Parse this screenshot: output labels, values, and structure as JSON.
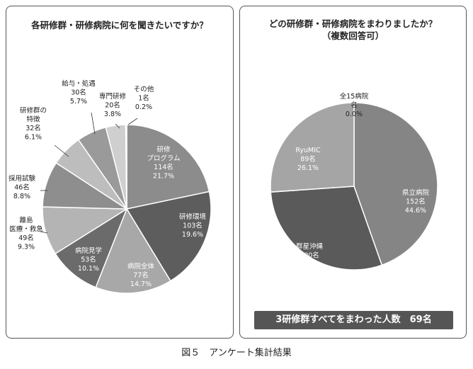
{
  "chart_data": [
    {
      "type": "pie",
      "title": "各研修群・研修病院に何を聞きたいですか？",
      "slices": [
        {
          "label": [
            "研修",
            "プログラム"
          ],
          "count": "114名",
          "percent": "21.7%",
          "value": 21.7,
          "color": "#8c8c8c",
          "text_color": "#ffffff"
        },
        {
          "label": [
            "研修環境"
          ],
          "count": "103名",
          "percent": "19.6%",
          "value": 19.6,
          "color": "#5d5d5d",
          "text_color": "#ffffff"
        },
        {
          "label": [
            "病院全体"
          ],
          "count": "77名",
          "percent": "14.7%",
          "value": 14.7,
          "color": "#a8a8a8",
          "text_color": "#ffffff"
        },
        {
          "label": [
            "病院見学"
          ],
          "count": "53名",
          "percent": "10.1%",
          "value": 10.1,
          "color": "#6b6b6b",
          "text_color": "#ffffff"
        },
        {
          "label": [
            "離島",
            "医療・救急"
          ],
          "count": "49名",
          "percent": "9.3%",
          "value": 9.3,
          "color": "#b4b4b4",
          "text_color": "#222222"
        },
        {
          "label": [
            "採用試験"
          ],
          "count": "46名",
          "percent": "8.8%",
          "value": 8.8,
          "color": "#8e8e8e",
          "text_color": "#222222"
        },
        {
          "label": [
            "研修群の",
            "特徴"
          ],
          "count": "32名",
          "percent": "6.1%",
          "value": 6.1,
          "color": "#bdbdbd",
          "text_color": "#222222"
        },
        {
          "label": [
            "給与・処遇"
          ],
          "count": "30名",
          "percent": "5.7%",
          "value": 5.7,
          "color": "#9a9a9a",
          "text_color": "#222222"
        },
        {
          "label": [
            "専門研修"
          ],
          "count": "20名",
          "percent": "3.8%",
          "value": 3.8,
          "color": "#cfcfcf",
          "text_color": "#222222"
        },
        {
          "label": [
            "その他"
          ],
          "count": "1名",
          "percent": "0.2%",
          "value": 0.2,
          "color": "#e2e2e2",
          "text_color": "#222222"
        }
      ]
    },
    {
      "type": "pie",
      "title": "どの研修群・研修病院をまわりましたか？",
      "subtitle": "（複数回答可）",
      "slices": [
        {
          "label": [
            "県立病院"
          ],
          "count": "152名",
          "percent": "44.6%",
          "value": 44.6,
          "color": "#858585",
          "text_color": "#ffffff"
        },
        {
          "label": [
            "群星沖縄"
          ],
          "count": "100名",
          "percent": "29.3%",
          "value": 29.3,
          "color": "#5a5a5a",
          "text_color": "#ffffff"
        },
        {
          "label": [
            "RyuMIC"
          ],
          "count": "89名",
          "percent": "26.1%",
          "value": 26.1,
          "color": "#a5a5a5",
          "text_color": "#ffffff"
        },
        {
          "label": [
            "全15病院",
            "名"
          ],
          "count": "",
          "percent": "0.0%",
          "value": 0.0,
          "color": "#cccccc",
          "text_color": "#222222"
        }
      ],
      "summary": "3研修群すべてをまわった人数　69名"
    }
  ],
  "caption": "図５　アンケート集計結果"
}
